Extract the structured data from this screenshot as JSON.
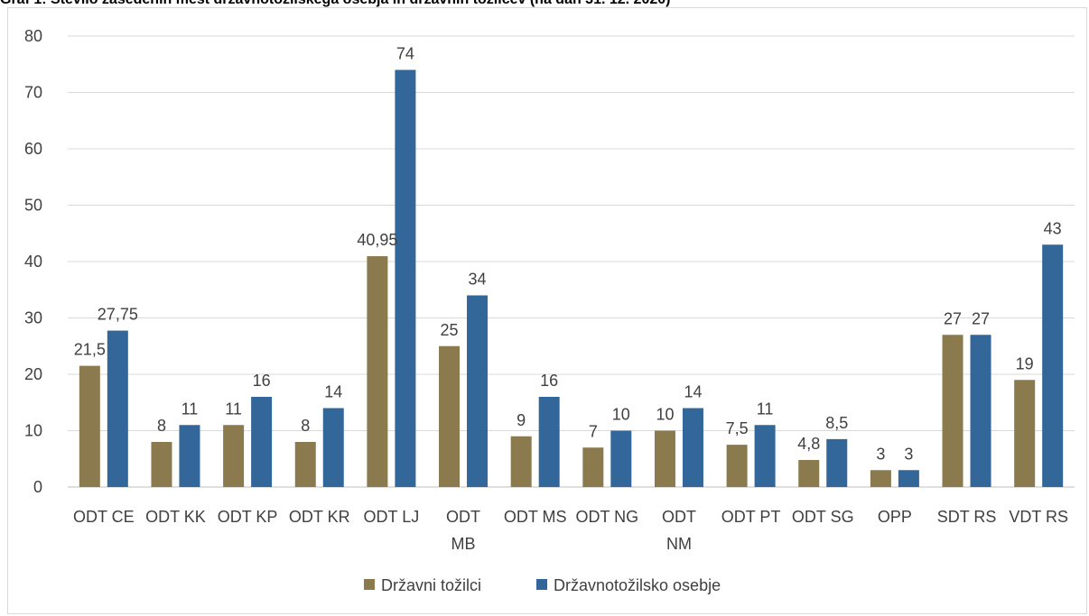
{
  "title": "Graf 1: Število zasedenih mest državnotožilskega osebja in državnih tožilcev (na dan 31. 12. 2020)",
  "chart_data": {
    "type": "bar",
    "categories": [
      [
        "ODT CE"
      ],
      [
        "ODT KK"
      ],
      [
        "ODT KP"
      ],
      [
        "ODT KR"
      ],
      [
        "ODT LJ"
      ],
      [
        "ODT",
        "MB"
      ],
      [
        "ODT MS"
      ],
      [
        "ODT NG"
      ],
      [
        "ODT",
        "NM"
      ],
      [
        "ODT PT"
      ],
      [
        "ODT SG"
      ],
      [
        "OPP"
      ],
      [
        "SDT RS"
      ],
      [
        "VDT RS"
      ]
    ],
    "series": [
      {
        "name": "Državni tožilci",
        "color": "#8b7a4e",
        "values": [
          21.5,
          8,
          11,
          8,
          40.95,
          25,
          9,
          7,
          10,
          7.5,
          4.8,
          3,
          27,
          19
        ],
        "labels": [
          "21,5",
          "8",
          "11",
          "8",
          "40,95",
          "25",
          "9",
          "7",
          "10",
          "7,5",
          "4,8",
          "3",
          "27",
          "19"
        ]
      },
      {
        "name": "Državnotožilsko osebje",
        "color": "#336699",
        "values": [
          27.75,
          11,
          16,
          14,
          74,
          34,
          16,
          10,
          14,
          11,
          8.5,
          3,
          27,
          43
        ],
        "labels": [
          "27,75",
          "11",
          "16",
          "14",
          "74",
          "34",
          "16",
          "10",
          "14",
          "11",
          "8,5",
          "3",
          "27",
          "43"
        ]
      }
    ],
    "ylim": [
      0,
      80
    ],
    "yticks": [
      0,
      10,
      20,
      30,
      40,
      50,
      60,
      70,
      80
    ],
    "grid": true,
    "legend": "bottom"
  }
}
